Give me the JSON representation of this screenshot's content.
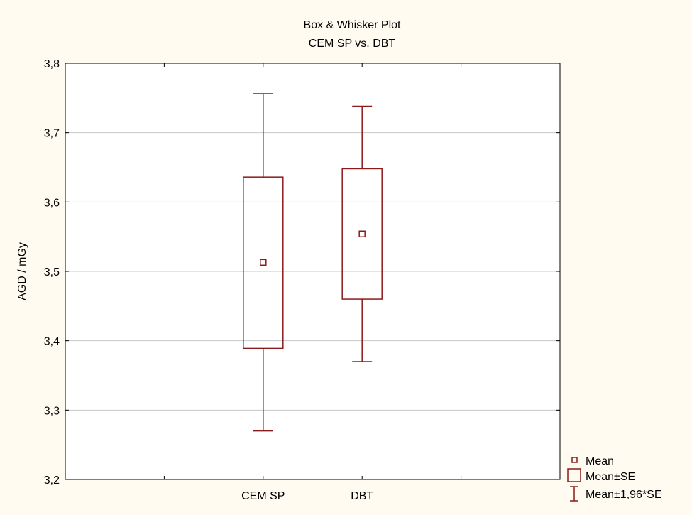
{
  "chart_data": {
    "type": "boxplot",
    "title": "Box & Whisker Plot",
    "subtitle": "CEM SP vs. DBT",
    "xlabel": "",
    "ylabel": "AGD / mGy",
    "categories": [
      "CEM SP",
      "DBT"
    ],
    "ylim": [
      3.2,
      3.8
    ],
    "y_ticks": [
      3.2,
      3.3,
      3.4,
      3.5,
      3.6,
      3.7,
      3.8
    ],
    "y_tick_labels": [
      "3,2",
      "3,3",
      "3,4",
      "3,5",
      "3,6",
      "3,7",
      "3,8"
    ],
    "grid": true,
    "legend_position": "bottom-right",
    "series": [
      {
        "category": "CEM SP",
        "mean": 3.513,
        "se_low": 3.389,
        "se_high": 3.636,
        "ci_low": 3.27,
        "ci_high": 3.756
      },
      {
        "category": "DBT",
        "mean": 3.554,
        "se_low": 3.46,
        "se_high": 3.648,
        "ci_low": 3.37,
        "ci_high": 3.738
      }
    ],
    "legend": [
      {
        "symbol": "mean-marker",
        "label": "Mean"
      },
      {
        "symbol": "box",
        "label": "Mean±SE"
      },
      {
        "symbol": "whisker",
        "label": "Mean±1,96*SE"
      }
    ],
    "colors": {
      "marks": "#8b1a1a",
      "background": "#fffbf1",
      "plot_background": "#ffffff",
      "grid": "#c8c8c8",
      "frame": "#000000"
    }
  }
}
